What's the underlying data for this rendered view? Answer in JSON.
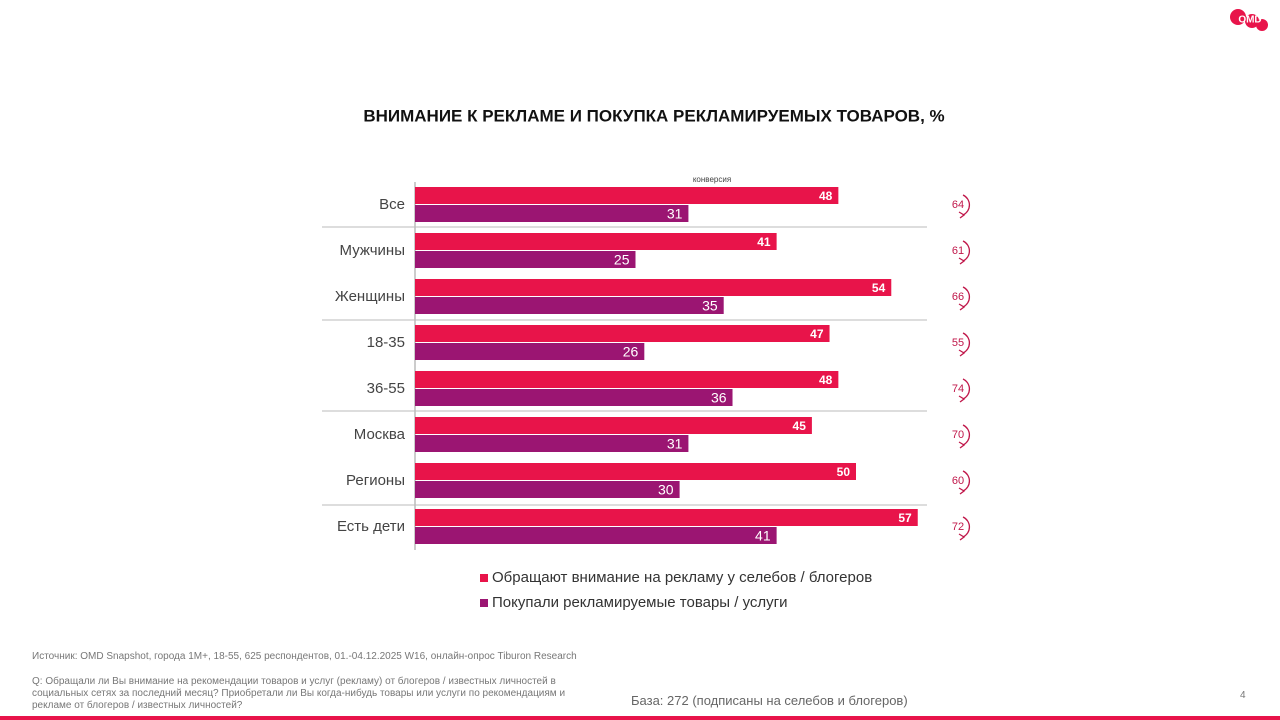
{
  "logo": "OMD",
  "chart_data": {
    "type": "bar",
    "orientation": "horizontal",
    "title": "ВНИМАНИЕ К РЕКЛАМЕ И ПОКУПКА РЕКЛАМИРУЕМЫХ ТОВАРОВ, %",
    "categories": [
      "Все",
      "Мужчины",
      "Женщины",
      "18-35",
      "36-55",
      "Москва",
      "Регионы",
      "Есть дети"
    ],
    "series": [
      {
        "name": "Обращают внимание на рекламу у селебов / блогеров",
        "color": "#e8144a",
        "values": [
          48,
          41,
          54,
          47,
          48,
          45,
          50,
          57
        ]
      },
      {
        "name": "Покупали рекламируемые товары / услуги",
        "color": "#9b1572",
        "values": [
          31,
          25,
          35,
          26,
          36,
          31,
          30,
          41
        ]
      }
    ],
    "conversion": {
      "label": "конверсия",
      "values": [
        64,
        61,
        66,
        55,
        74,
        70,
        60,
        72
      ]
    }
  },
  "footer": {
    "source": "Источник: OMD Snapshot, города 1М+, 18-55, 625  респондентов, 01.-04.12.2025 W16, онлайн-опрос Tiburon Research",
    "question": "Q: Обращали ли Вы внимание на рекомендации товаров и услуг (рекламу) от блогеров / известных личностей в социальных сетях за последний месяц? Приобретали ли Вы когда-нибудь товары или услуги по рекомендациям и рекламе от блогеров / известных личностей?",
    "base": "База: 272 (подписаны на селебов и блогеров)",
    "page_number": "4"
  }
}
